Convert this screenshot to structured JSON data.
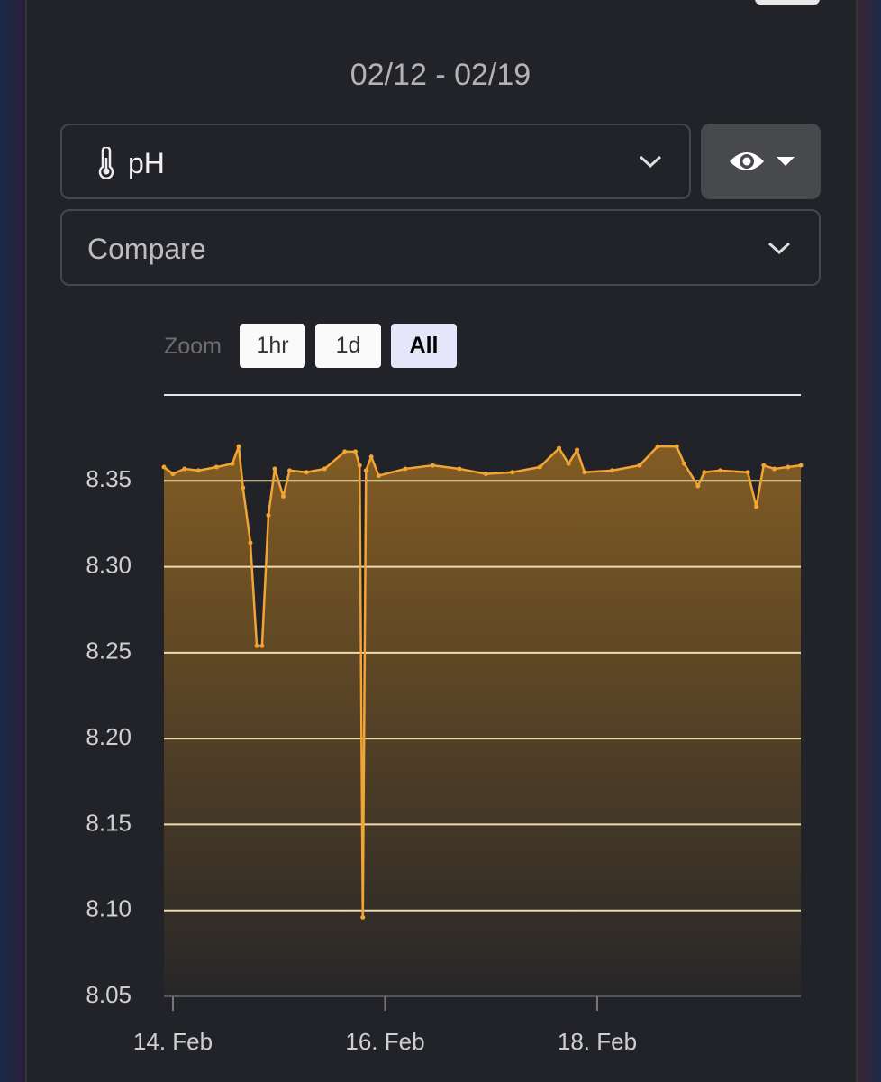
{
  "header": {
    "date_range": "02/12 - 02/19"
  },
  "controls": {
    "metric": "pH",
    "compare": "Compare",
    "zoom_label": "Zoom",
    "zoom_buttons": [
      "1hr",
      "1d",
      "All"
    ]
  },
  "chart_data": {
    "type": "area",
    "x": [
      13.915,
      14.0,
      14.11,
      14.24,
      14.41,
      14.56,
      14.62,
      14.66,
      14.73,
      14.79,
      14.84,
      14.9,
      14.96,
      15.04,
      15.1,
      15.26,
      15.43,
      15.62,
      15.72,
      15.76,
      15.79,
      15.82,
      15.87,
      15.94,
      16.19,
      16.45,
      16.7,
      16.95,
      17.2,
      17.46,
      17.64,
      17.73,
      17.81,
      17.88,
      18.14,
      18.4,
      18.57,
      18.75,
      18.82,
      18.95,
      19.01,
      19.16,
      19.42,
      19.5,
      19.57,
      19.67,
      19.8,
      19.92
    ],
    "values": [
      8.358,
      8.354,
      8.357,
      8.356,
      8.358,
      8.36,
      8.37,
      8.346,
      8.314,
      8.254,
      8.254,
      8.33,
      8.357,
      8.341,
      8.356,
      8.355,
      8.357,
      8.367,
      8.367,
      8.359,
      8.096,
      8.356,
      8.364,
      8.353,
      8.357,
      8.359,
      8.357,
      8.354,
      8.355,
      8.358,
      8.369,
      8.36,
      8.368,
      8.355,
      8.356,
      8.359,
      8.37,
      8.37,
      8.36,
      8.347,
      8.355,
      8.356,
      8.355,
      8.335,
      8.359,
      8.357,
      8.358,
      8.359
    ],
    "xlim": [
      13.915,
      19.92
    ],
    "ylim": [
      8.05,
      8.4
    ],
    "xticks": [
      {
        "value": 14,
        "label": "14. Feb"
      },
      {
        "value": 16,
        "label": "16. Feb"
      },
      {
        "value": 18,
        "label": "18. Feb"
      }
    ],
    "yticks": [
      8.05,
      {
        "value": 8.1,
        "label": "8.10"
      },
      8.15,
      {
        "value": 8.2,
        "label": "8.20"
      },
      8.25,
      {
        "value": 8.3,
        "label": "8.30"
      },
      8.35
    ],
    "color": "#f2a535",
    "grid": true
  }
}
